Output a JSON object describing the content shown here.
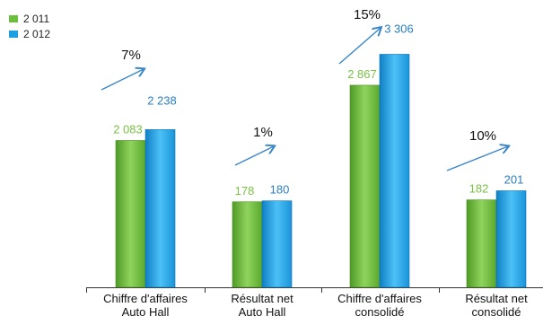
{
  "legend": {
    "items": [
      {
        "label": "2 011",
        "color": "#6abf3c"
      },
      {
        "label": "2 012",
        "color": "#1e9fe0"
      }
    ]
  },
  "chart_data": {
    "type": "bar",
    "categories": [
      [
        "Chiffre d'affaires",
        "Auto Hall"
      ],
      [
        "Résultat net",
        "Auto Hall"
      ],
      [
        "Chiffre d'affaires",
        "consolidé"
      ],
      [
        "Résultat net",
        "consolidé"
      ]
    ],
    "series": [
      {
        "name": "2 011",
        "color": "#6abf3c",
        "label_color": "#7ac143",
        "values": [
          2083,
          178,
          2867,
          182
        ],
        "labels": [
          "2 083",
          "178",
          "2 867",
          "182"
        ]
      },
      {
        "name": "2 012",
        "color": "#1e9fe0",
        "label_color": "#2a7fc0",
        "values": [
          2238,
          180,
          3306,
          201
        ],
        "labels": [
          "2 238",
          "180",
          "3 306",
          "201"
        ]
      }
    ],
    "growth": [
      "7%",
      "1%",
      "15%",
      "10%"
    ],
    "arrow_color": "#3a86c8",
    "legend_position": "top-left",
    "grid": false
  }
}
